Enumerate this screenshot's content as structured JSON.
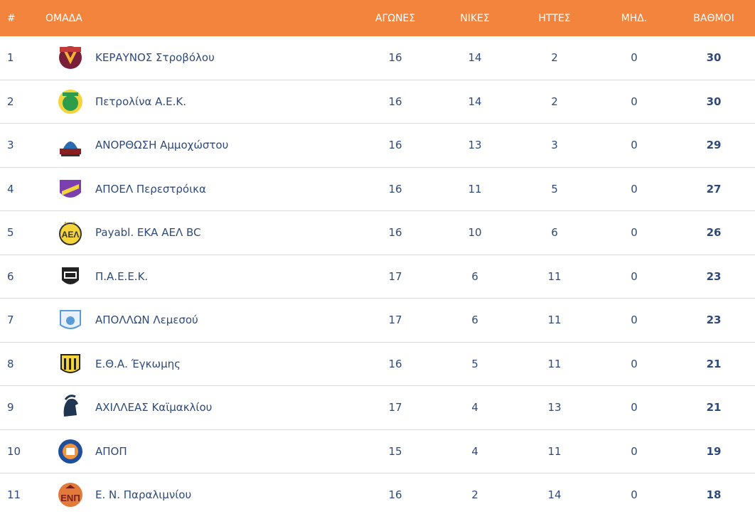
{
  "header": {
    "rank": "#",
    "team": "ΟΜΑΔΑ",
    "played": "ΑΓΩΝΕΣ",
    "wins": "ΝΙΚΕΣ",
    "losses": "ΗΤΤΕΣ",
    "zero": "ΜΗΔ.",
    "points": "ΒΑΘΜΟΙ"
  },
  "colors": {
    "header_bg": "#f2843e",
    "text": "#2e4a7a",
    "divider": "#d9d9d9"
  },
  "rows": [
    {
      "rank": "1",
      "team": "ΚΕΡΑΥΝΟΣ Στροβόλου",
      "played": "16",
      "wins": "14",
      "losses": "2",
      "zero": "0",
      "points": "30",
      "logo": "keravnos-logo"
    },
    {
      "rank": "2",
      "team": "Πετρολίνα Α.Ε.Κ.",
      "played": "16",
      "wins": "14",
      "losses": "2",
      "zero": "0",
      "points": "30",
      "logo": "aek-logo"
    },
    {
      "rank": "3",
      "team": "ΑΝΟΡΘΩΣΗ Αμμοχώστου",
      "played": "16",
      "wins": "13",
      "losses": "3",
      "zero": "0",
      "points": "29",
      "logo": "anorthosis-logo"
    },
    {
      "rank": "4",
      "team": "ΑΠΟΕΛ Περεστρόικα",
      "played": "16",
      "wins": "11",
      "losses": "5",
      "zero": "0",
      "points": "27",
      "logo": "apoel-logo"
    },
    {
      "rank": "5",
      "team": "Payabl. ΕΚΑ ΑΕΛ BC",
      "played": "16",
      "wins": "10",
      "losses": "6",
      "zero": "0",
      "points": "26",
      "logo": "ael-logo"
    },
    {
      "rank": "6",
      "team": "Π.Α.Ε.Ε.Κ.",
      "played": "17",
      "wins": "6",
      "losses": "11",
      "zero": "0",
      "points": "23",
      "logo": "paeek-logo"
    },
    {
      "rank": "7",
      "team": "ΑΠΟΛΛΩΝ Λεμεσού",
      "played": "17",
      "wins": "6",
      "losses": "11",
      "zero": "0",
      "points": "23",
      "logo": "apollon-logo"
    },
    {
      "rank": "8",
      "team": "Ε.Θ.Α. Έγκωμης",
      "played": "16",
      "wins": "5",
      "losses": "11",
      "zero": "0",
      "points": "21",
      "logo": "etha-logo"
    },
    {
      "rank": "9",
      "team": "ΑΧΙΛΛΕΑΣ Καϊμακλίου",
      "played": "17",
      "wins": "4",
      "losses": "13",
      "zero": "0",
      "points": "21",
      "logo": "achilleas-logo"
    },
    {
      "rank": "10",
      "team": "ΑΠΟΠ",
      "played": "15",
      "wins": "4",
      "losses": "11",
      "zero": "0",
      "points": "19",
      "logo": "apop-logo"
    },
    {
      "rank": "11",
      "team": "Ε. Ν. Παραλιμνίου",
      "played": "16",
      "wins": "2",
      "losses": "14",
      "zero": "0",
      "points": "18",
      "logo": "enp-logo"
    }
  ]
}
